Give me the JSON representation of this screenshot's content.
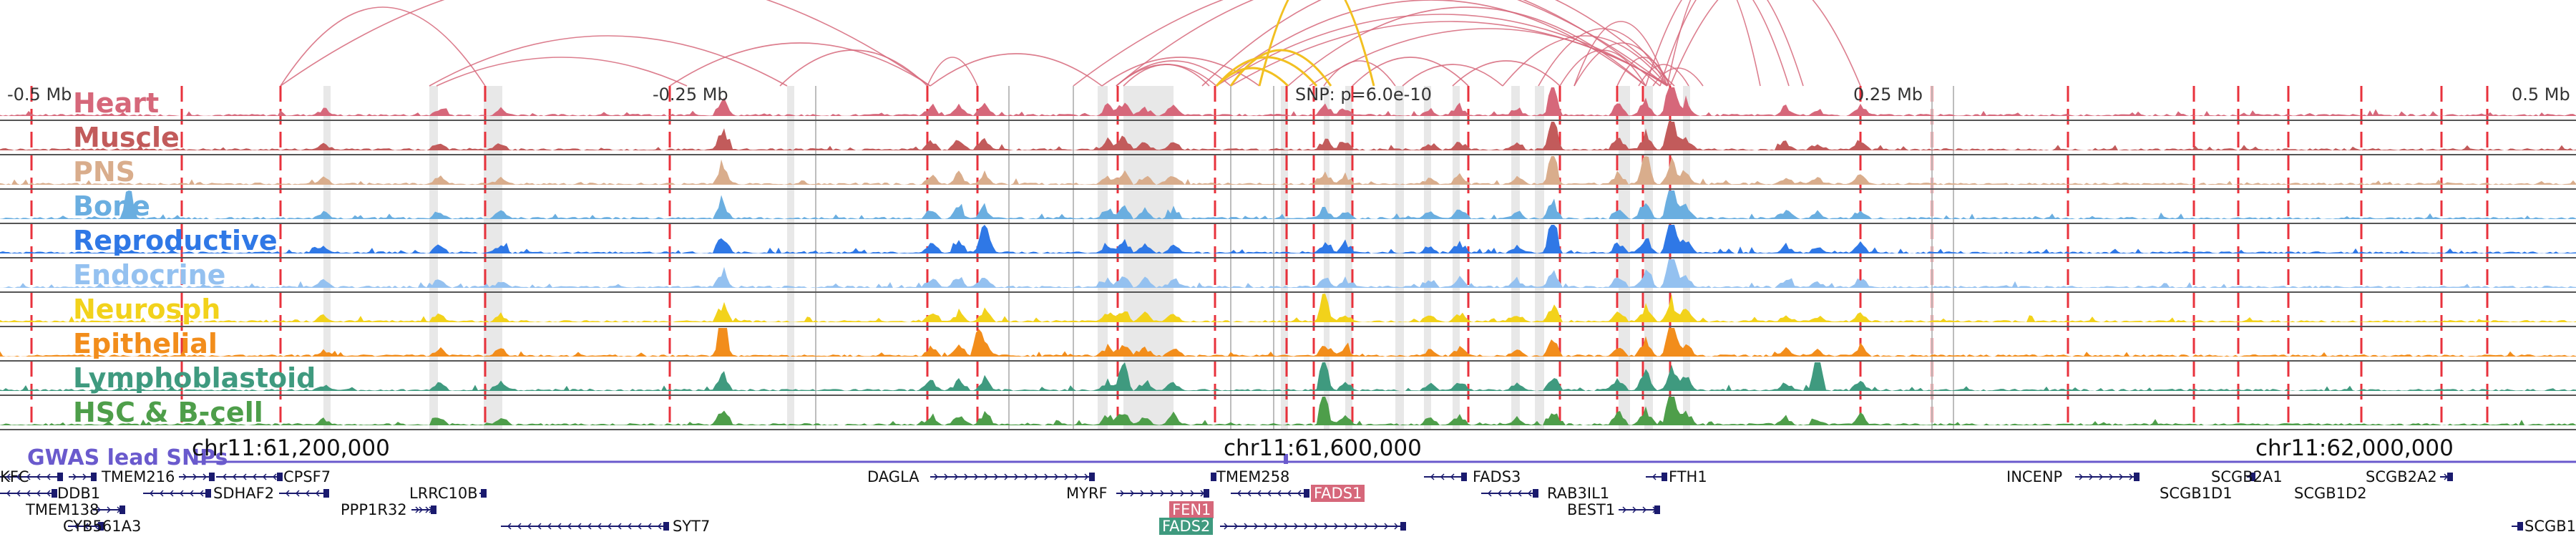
{
  "scale": {
    "labels": [
      "-0.5 Mb",
      "-0.25 Mb",
      "SNP: p=6.0e-10",
      "0.25 Mb",
      "0.5 Mb"
    ]
  },
  "tracks": [
    {
      "name": "Heart",
      "color": "#d6677a"
    },
    {
      "name": "Muscle",
      "color": "#c25b5b"
    },
    {
      "name": "PNS",
      "color": "#d9ad8c"
    },
    {
      "name": "Bone",
      "color": "#6aaee0"
    },
    {
      "name": "Reproductive",
      "color": "#2f78e6"
    },
    {
      "name": "Endocrine",
      "color": "#94c1f0"
    },
    {
      "name": "Neurosph",
      "color": "#f2d21b"
    },
    {
      "name": "Epithelial",
      "color": "#f28d1b"
    },
    {
      "name": "Lymphoblastoid",
      "color": "#3f9a7f"
    },
    {
      "name": "HSC & B-cell",
      "color": "#4e9e4a"
    }
  ],
  "gwas": {
    "label": "GWAS lead SNPs",
    "color": "#6a5acd"
  },
  "coordinates": [
    "chr11:61,200,000",
    "chr11:61,600,000",
    "chr11:62,000,000"
  ],
  "genes": [
    {
      "name": "KFC"
    },
    {
      "name": "TMEM216"
    },
    {
      "name": "CPSF7"
    },
    {
      "name": "DDB1"
    },
    {
      "name": "SDHAF2"
    },
    {
      "name": "LRRC10B"
    },
    {
      "name": "TMEM138"
    },
    {
      "name": "PPP1R32"
    },
    {
      "name": "CYB561A3"
    },
    {
      "name": "SYT7"
    },
    {
      "name": "DAGLA"
    },
    {
      "name": "TMEM258"
    },
    {
      "name": "MYRF"
    },
    {
      "name": "FADS1",
      "badge": "#d6677a"
    },
    {
      "name": "FEN1",
      "badge": "#d6677a"
    },
    {
      "name": "FADS2",
      "badge": "#3f9a7f"
    },
    {
      "name": "FADS3"
    },
    {
      "name": "RAB3IL1"
    },
    {
      "name": "BEST1"
    },
    {
      "name": "FTH1"
    },
    {
      "name": "INCENP"
    },
    {
      "name": "SCGB2A1"
    },
    {
      "name": "SCGB1D1"
    },
    {
      "name": "SCGB1D2"
    },
    {
      "name": "SCGB2A2"
    },
    {
      "name": "SCGB1"
    }
  ],
  "colors": {
    "enhancer_line": "#e8323c",
    "highlight_band": "#d9d9d9",
    "gene_structure": "#1a1a6e",
    "background": "#ffffff"
  }
}
